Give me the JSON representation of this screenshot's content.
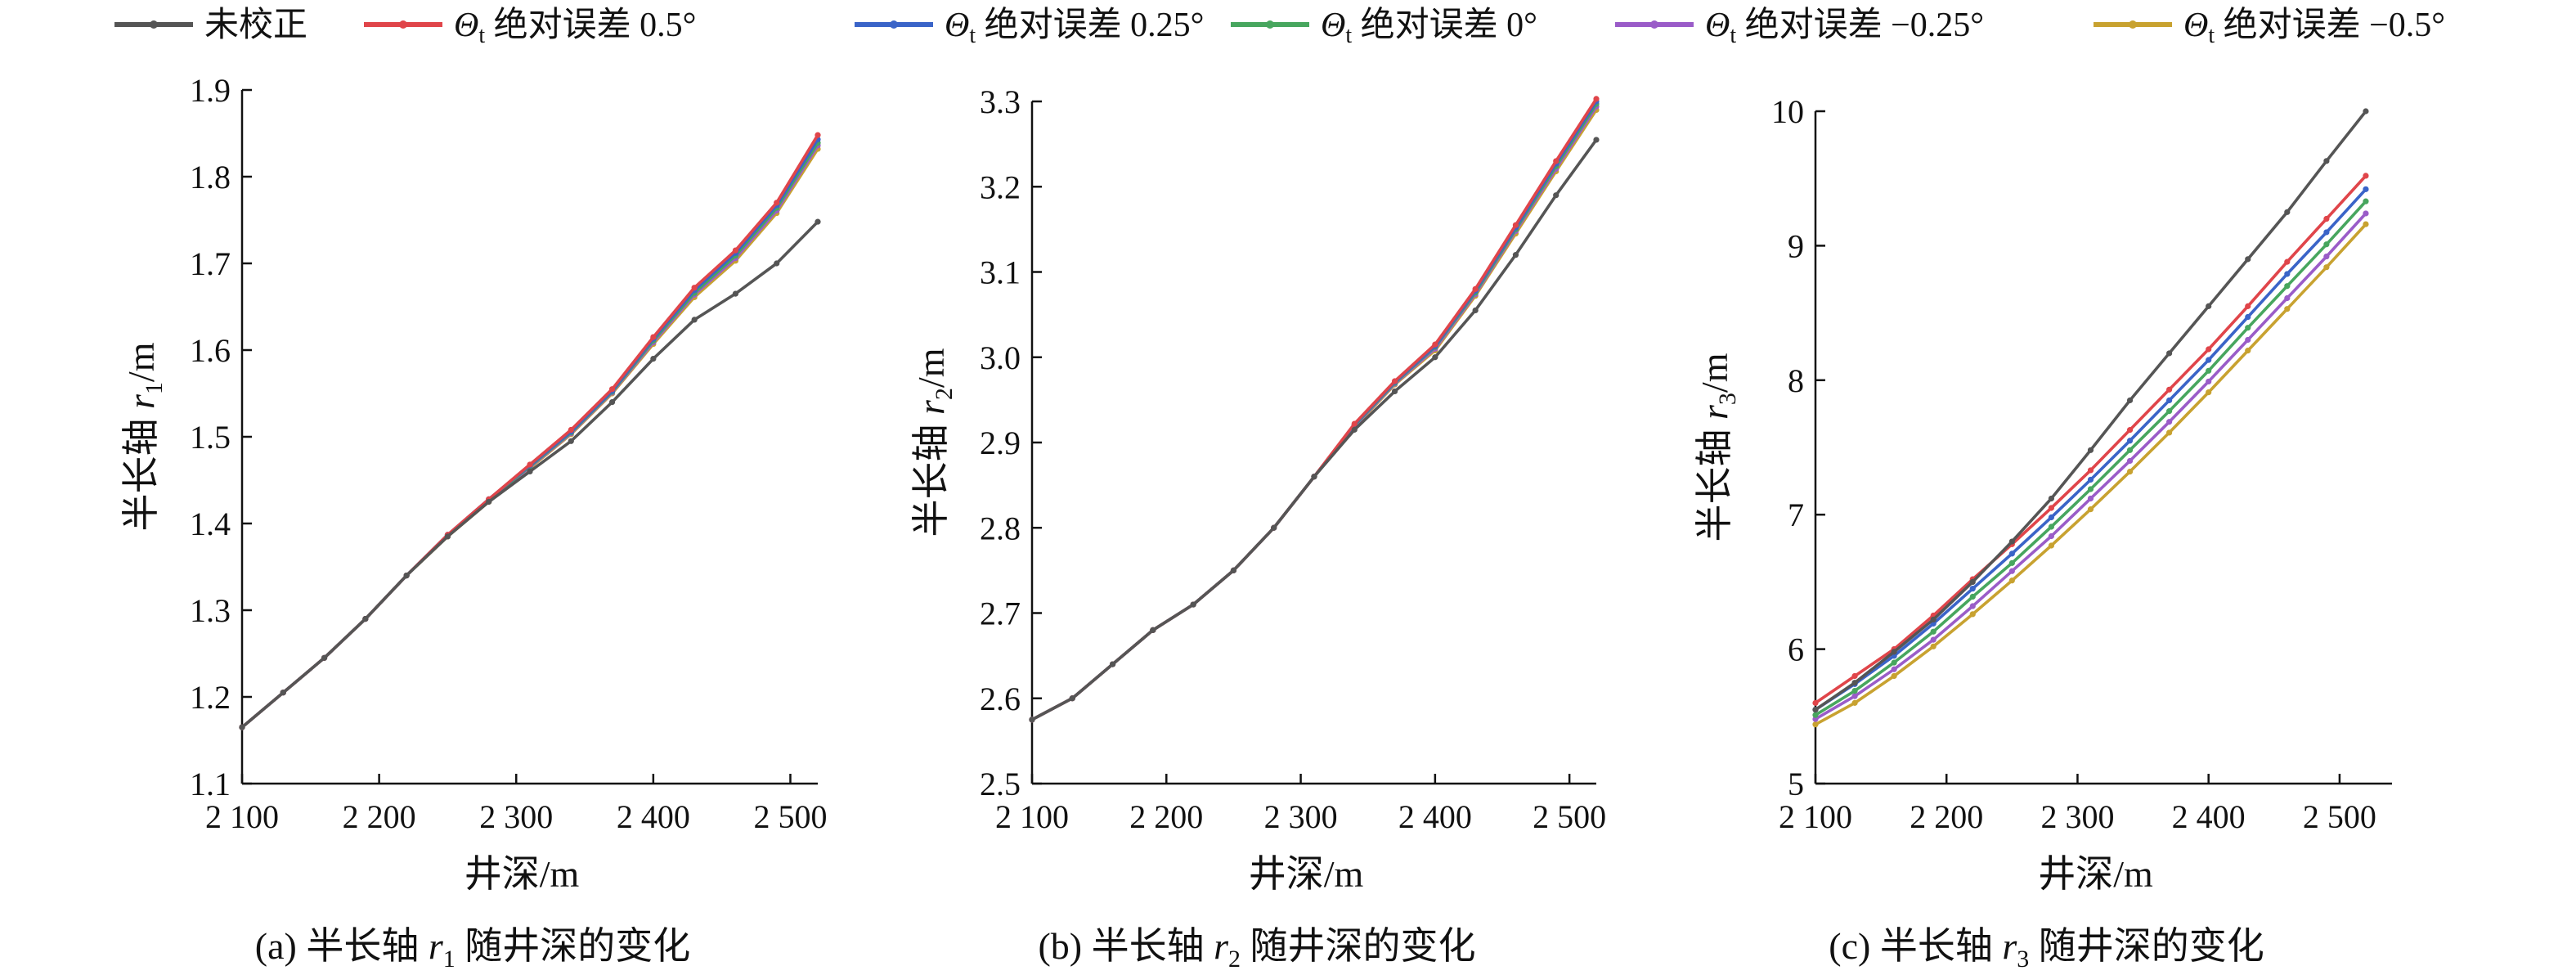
{
  "legend": [
    {
      "prefix": "",
      "sub": "",
      "text": "未校正",
      "color": "#555555"
    },
    {
      "prefix": "Θ",
      "sub": "t",
      "text": " 绝对误差 0.5°",
      "color": "#e0454a"
    },
    {
      "prefix": "Θ",
      "sub": "t",
      "text": " 绝对误差 0.25°",
      "color": "#3a64c8"
    },
    {
      "prefix": "Θ",
      "sub": "t",
      "text": " 绝对误差 0°",
      "color": "#47a65e"
    },
    {
      "prefix": "Θ",
      "sub": "t",
      "text": " 绝对误差 −0.25°",
      "color": "#9a5cc8"
    },
    {
      "prefix": "Θ",
      "sub": "t",
      "text": " 绝对误差 −0.5°",
      "color": "#c8a230"
    }
  ],
  "chart_data": [
    {
      "type": "line",
      "caption": {
        "prefix": "(a) 半长轴 ",
        "var": "r",
        "sub": "1",
        "suffix": " 随井深的变化"
      },
      "xlabel": "井深/m",
      "ylabel": {
        "prefix": "半长轴 ",
        "var": "r",
        "sub": "1",
        "suffix": "/m"
      },
      "xlim": [
        2100,
        2520
      ],
      "ylim": [
        1.1,
        1.9
      ],
      "xticks": [
        2100,
        2200,
        2300,
        2400,
        2500
      ],
      "xtick_labels": [
        "2 100",
        "2 200",
        "2 300",
        "2 400",
        "2 500"
      ],
      "yticks": [
        1.1,
        1.2,
        1.3,
        1.4,
        1.5,
        1.6,
        1.7,
        1.8,
        1.9
      ],
      "ytick_labels": [
        "1.1",
        "1.2",
        "1.3",
        "1.4",
        "1.5",
        "1.6",
        "1.7",
        "1.8",
        "1.9"
      ],
      "x": [
        2100,
        2130,
        2160,
        2190,
        2220,
        2250,
        2280,
        2310,
        2340,
        2370,
        2400,
        2430,
        2460,
        2490,
        2520
      ],
      "series": [
        {
          "name": "未校正",
          "values": [
            1.165,
            1.205,
            1.245,
            1.29,
            1.34,
            1.385,
            1.425,
            1.46,
            1.495,
            1.54,
            1.59,
            1.635,
            1.665,
            1.7,
            1.748
          ]
        },
        {
          "name": "Θt 绝对误差 0.5°",
          "values": [
            1.165,
            1.205,
            1.245,
            1.29,
            1.34,
            1.387,
            1.428,
            1.468,
            1.508,
            1.555,
            1.615,
            1.672,
            1.715,
            1.77,
            1.848
          ]
        },
        {
          "name": "Θt 绝对误差 0.25°",
          "values": [
            1.165,
            1.205,
            1.245,
            1.29,
            1.34,
            1.387,
            1.428,
            1.467,
            1.506,
            1.553,
            1.613,
            1.669,
            1.712,
            1.767,
            1.843
          ]
        },
        {
          "name": "Θt 绝对误差 0°",
          "values": [
            1.165,
            1.205,
            1.245,
            1.29,
            1.34,
            1.386,
            1.427,
            1.466,
            1.505,
            1.552,
            1.611,
            1.666,
            1.709,
            1.764,
            1.839
          ]
        },
        {
          "name": "Θt 绝对误差 −0.25°",
          "values": [
            1.165,
            1.205,
            1.245,
            1.29,
            1.34,
            1.386,
            1.426,
            1.465,
            1.504,
            1.551,
            1.609,
            1.664,
            1.706,
            1.761,
            1.836
          ]
        },
        {
          "name": "Θt 绝对误差 −0.5°",
          "values": [
            1.165,
            1.205,
            1.245,
            1.29,
            1.34,
            1.385,
            1.425,
            1.464,
            1.503,
            1.55,
            1.607,
            1.661,
            1.703,
            1.758,
            1.832
          ]
        }
      ]
    },
    {
      "type": "line",
      "caption": {
        "prefix": "(b) 半长轴 ",
        "var": "r",
        "sub": "2",
        "suffix": " 随井深的变化"
      },
      "xlabel": "井深/m",
      "ylabel": {
        "prefix": "半长轴 ",
        "var": "r",
        "sub": "2",
        "suffix": "/m"
      },
      "xlim": [
        2100,
        2520
      ],
      "ylim": [
        2.5,
        3.3
      ],
      "xticks": [
        2100,
        2200,
        2300,
        2400,
        2500
      ],
      "xtick_labels": [
        "2 100",
        "2 200",
        "2 300",
        "2 400",
        "2 500"
      ],
      "yticks": [
        2.5,
        2.6,
        2.7,
        2.8,
        2.9,
        3.0,
        3.1,
        3.2,
        3.3
      ],
      "ytick_labels": [
        "2.5",
        "2.6",
        "2.7",
        "2.8",
        "2.9",
        "3.0",
        "3.1",
        "3.2",
        "3.3"
      ],
      "x": [
        2100,
        2130,
        2160,
        2190,
        2220,
        2250,
        2280,
        2310,
        2340,
        2370,
        2400,
        2430,
        2460,
        2490,
        2520
      ],
      "series": [
        {
          "name": "未校正",
          "values": [
            2.575,
            2.6,
            2.64,
            2.68,
            2.71,
            2.75,
            2.8,
            2.86,
            2.915,
            2.96,
            3.0,
            3.055,
            3.12,
            3.19,
            3.255
          ]
        },
        {
          "name": "Θt 绝对误差 0.5°",
          "values": [
            2.575,
            2.6,
            2.64,
            2.68,
            2.71,
            2.75,
            2.8,
            2.86,
            2.922,
            2.972,
            3.015,
            3.08,
            3.155,
            3.23,
            3.303
          ]
        },
        {
          "name": "Θt 绝对误差 0.25°",
          "values": [
            2.575,
            2.6,
            2.64,
            2.68,
            2.71,
            2.75,
            2.8,
            2.86,
            2.921,
            2.971,
            3.013,
            3.078,
            3.152,
            3.227,
            3.3
          ]
        },
        {
          "name": "Θt 绝对误差 0°",
          "values": [
            2.575,
            2.6,
            2.64,
            2.68,
            2.71,
            2.75,
            2.8,
            2.86,
            2.92,
            2.97,
            3.012,
            3.076,
            3.15,
            3.224,
            3.297
          ]
        },
        {
          "name": "Θt 绝对误差 −0.25°",
          "values": [
            2.575,
            2.6,
            2.64,
            2.68,
            2.71,
            2.75,
            2.8,
            2.86,
            2.919,
            2.969,
            3.01,
            3.074,
            3.148,
            3.221,
            3.294
          ]
        },
        {
          "name": "Θt 绝对误差 −0.5°",
          "values": [
            2.575,
            2.6,
            2.64,
            2.68,
            2.71,
            2.75,
            2.8,
            2.86,
            2.918,
            2.968,
            3.008,
            3.072,
            3.145,
            3.218,
            3.29
          ]
        }
      ]
    },
    {
      "type": "line",
      "caption": {
        "prefix": "(c) 半长轴 ",
        "var": "r",
        "sub": "3",
        "suffix": " 随井深的变化"
      },
      "xlabel": "井深/m",
      "ylabel": {
        "prefix": "半长轴 ",
        "var": "r",
        "sub": "3",
        "suffix": "/m"
      },
      "xlim": [
        2100,
        2540
      ],
      "ylim": [
        5,
        10
      ],
      "xticks": [
        2100,
        2200,
        2300,
        2400,
        2500
      ],
      "xtick_labels": [
        "2 100",
        "2 200",
        "2 300",
        "2 400",
        "2 500"
      ],
      "yticks": [
        5,
        6,
        7,
        8,
        9,
        10
      ],
      "ytick_labels": [
        "5",
        "6",
        "7",
        "8",
        "9",
        "10"
      ],
      "x": [
        2100,
        2130,
        2160,
        2190,
        2220,
        2250,
        2280,
        2310,
        2340,
        2370,
        2400,
        2430,
        2460,
        2490,
        2520
      ],
      "series": [
        {
          "name": "未校正",
          "values": [
            5.55,
            5.75,
            5.98,
            6.22,
            6.5,
            6.8,
            7.12,
            7.48,
            7.85,
            8.2,
            8.55,
            8.9,
            9.25,
            9.63,
            10.0
          ]
        },
        {
          "name": "Θt 绝对误差 0.5°",
          "values": [
            5.6,
            5.8,
            6.0,
            6.25,
            6.52,
            6.78,
            7.05,
            7.33,
            7.63,
            7.93,
            8.23,
            8.55,
            8.88,
            9.2,
            9.52
          ]
        },
        {
          "name": "Θt 绝对误差 0.25°",
          "values": [
            5.55,
            5.74,
            5.95,
            6.19,
            6.45,
            6.71,
            6.98,
            7.26,
            7.55,
            7.85,
            8.15,
            8.47,
            8.79,
            9.1,
            9.42
          ]
        },
        {
          "name": "Θt 绝对误差 0°",
          "values": [
            5.51,
            5.69,
            5.9,
            6.13,
            6.39,
            6.64,
            6.91,
            7.19,
            7.48,
            7.77,
            8.07,
            8.39,
            8.7,
            9.01,
            9.33
          ]
        },
        {
          "name": "Θt 绝对误差 −0.25°",
          "values": [
            5.48,
            5.65,
            5.85,
            6.07,
            6.32,
            6.58,
            6.84,
            7.12,
            7.4,
            7.69,
            7.99,
            8.3,
            8.61,
            8.92,
            9.24
          ]
        },
        {
          "name": "Θt 绝对误差 −0.5°",
          "values": [
            5.44,
            5.6,
            5.8,
            6.02,
            6.26,
            6.51,
            6.77,
            7.04,
            7.32,
            7.61,
            7.91,
            8.22,
            8.53,
            8.84,
            9.16
          ]
        }
      ]
    }
  ]
}
